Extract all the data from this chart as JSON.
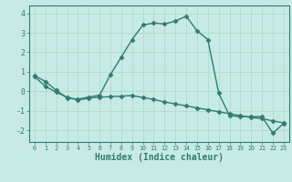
{
  "xlabel": "Humidex (Indice chaleur)",
  "background_color": "#c8eae4",
  "line_color": "#2e7d6e",
  "xlim": [
    -0.5,
    23.5
  ],
  "ylim": [
    -2.6,
    4.4
  ],
  "xticks": [
    0,
    1,
    2,
    3,
    4,
    5,
    6,
    7,
    8,
    9,
    10,
    11,
    12,
    13,
    14,
    15,
    16,
    17,
    18,
    19,
    20,
    21,
    22,
    23
  ],
  "yticks": [
    -2,
    -1,
    0,
    1,
    2,
    3,
    4
  ],
  "series1_x": [
    0,
    1,
    2,
    3,
    4,
    5,
    6,
    7,
    8,
    9,
    10,
    11,
    12,
    13,
    14,
    15,
    16,
    17,
    18,
    19,
    20,
    21,
    22,
    23
  ],
  "series1_y": [
    0.8,
    0.5,
    0.05,
    -0.35,
    -0.4,
    -0.3,
    -0.2,
    0.85,
    1.75,
    2.65,
    3.4,
    3.5,
    3.45,
    3.6,
    3.85,
    3.1,
    2.65,
    -0.1,
    -1.25,
    -1.3,
    -1.3,
    -1.3,
    -2.15,
    -1.65
  ],
  "series2_x": [
    0,
    1,
    2,
    3,
    4,
    5,
    6,
    7,
    8,
    9,
    10,
    11,
    12,
    13,
    14,
    15,
    16,
    17,
    18,
    19,
    20,
    21,
    22,
    23
  ],
  "series2_y": [
    0.75,
    0.25,
    -0.05,
    -0.3,
    -0.45,
    -0.35,
    -0.3,
    -0.28,
    -0.25,
    -0.22,
    -0.32,
    -0.42,
    -0.55,
    -0.65,
    -0.75,
    -0.85,
    -0.95,
    -1.05,
    -1.15,
    -1.25,
    -1.35,
    -1.4,
    -1.52,
    -1.62
  ],
  "grid_color": "#a8d8cc",
  "marker": "D",
  "markersize": 2.5,
  "linewidth": 1.0
}
